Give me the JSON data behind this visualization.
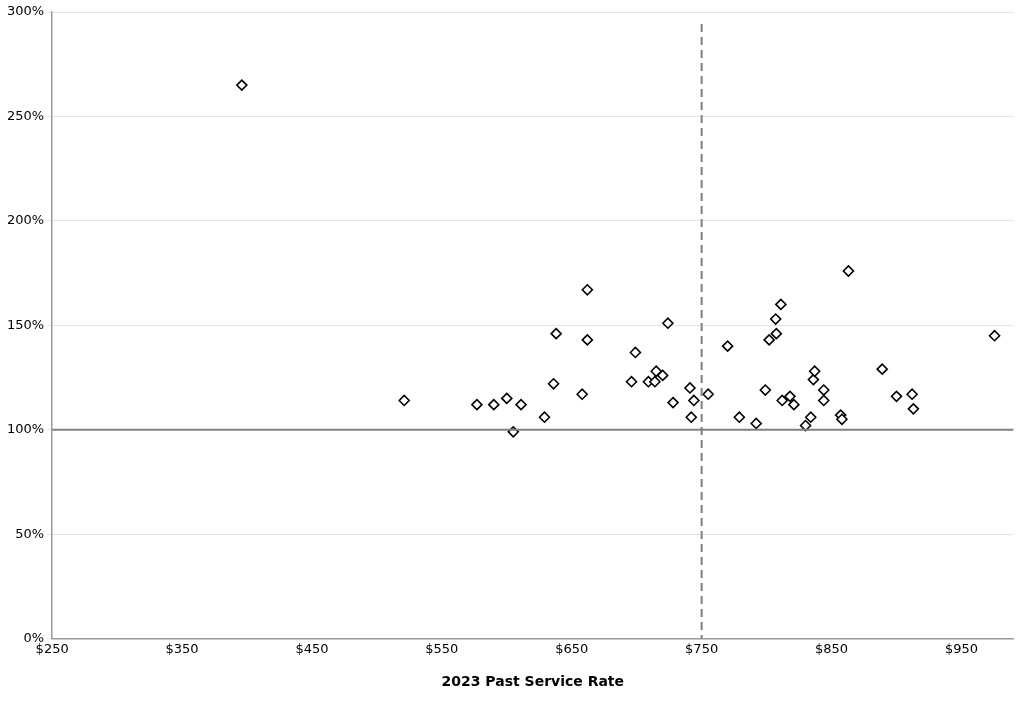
{
  "chart_data": {
    "type": "scatter",
    "xlabel": "2023 Past Service Rate",
    "x": [
      396,
      521,
      577,
      590,
      600,
      611,
      605,
      629,
      636,
      638,
      658,
      662,
      662,
      696,
      699,
      709,
      714,
      715,
      720,
      724,
      728,
      741,
      744,
      742,
      755,
      770,
      779,
      792,
      799,
      802,
      807.5,
      807,
      811,
      812,
      818,
      821,
      830,
      834,
      836,
      837,
      844,
      844,
      857,
      858,
      863,
      889,
      900,
      912,
      913,
      975.5
    ],
    "series": [
      {
        "color": "#000000",
        "values": [
          265,
          114,
          112,
          112,
          115,
          112,
          99,
          106,
          122,
          146,
          117,
          167,
          143,
          123,
          137,
          123,
          123,
          128,
          126,
          151,
          113,
          120,
          114,
          106,
          117,
          140,
          106,
          103,
          119,
          143,
          146,
          153,
          160,
          114,
          116,
          112,
          102,
          106,
          124,
          128,
          119,
          114,
          107,
          105,
          176,
          129,
          116,
          117,
          110,
          145
        ]
      }
    ],
    "marker": "diamond",
    "grid": "y",
    "legend": false,
    "xlim": [
      250,
      990
    ],
    "xticks": [
      {
        "value": 250,
        "label": "$250"
      },
      {
        "value": 350,
        "label": "$350"
      },
      {
        "value": 450,
        "label": "$450"
      },
      {
        "value": 550,
        "label": "$550"
      },
      {
        "value": 650,
        "label": "$650"
      },
      {
        "value": 750,
        "label": "$750"
      },
      {
        "value": 850,
        "label": "$850"
      },
      {
        "value": 950,
        "label": "$950"
      }
    ],
    "ylim": [
      0,
      300
    ],
    "yticks": [
      {
        "value": 0,
        "label": "0%"
      },
      {
        "value": 50,
        "label": "50%"
      },
      {
        "value": 100,
        "label": "100%"
      },
      {
        "value": 150,
        "label": "150%"
      },
      {
        "value": 200,
        "label": "200%"
      },
      {
        "value": 250,
        "label": "250%"
      },
      {
        "value": 300,
        "label": "300%"
      }
    ],
    "ref_lines": [
      {
        "axis": "y",
        "value": 100,
        "color": "#808080",
        "line_style": "solid"
      },
      {
        "axis": "x",
        "value": 750,
        "color": "#808080",
        "line_style": "dashed"
      }
    ]
  }
}
